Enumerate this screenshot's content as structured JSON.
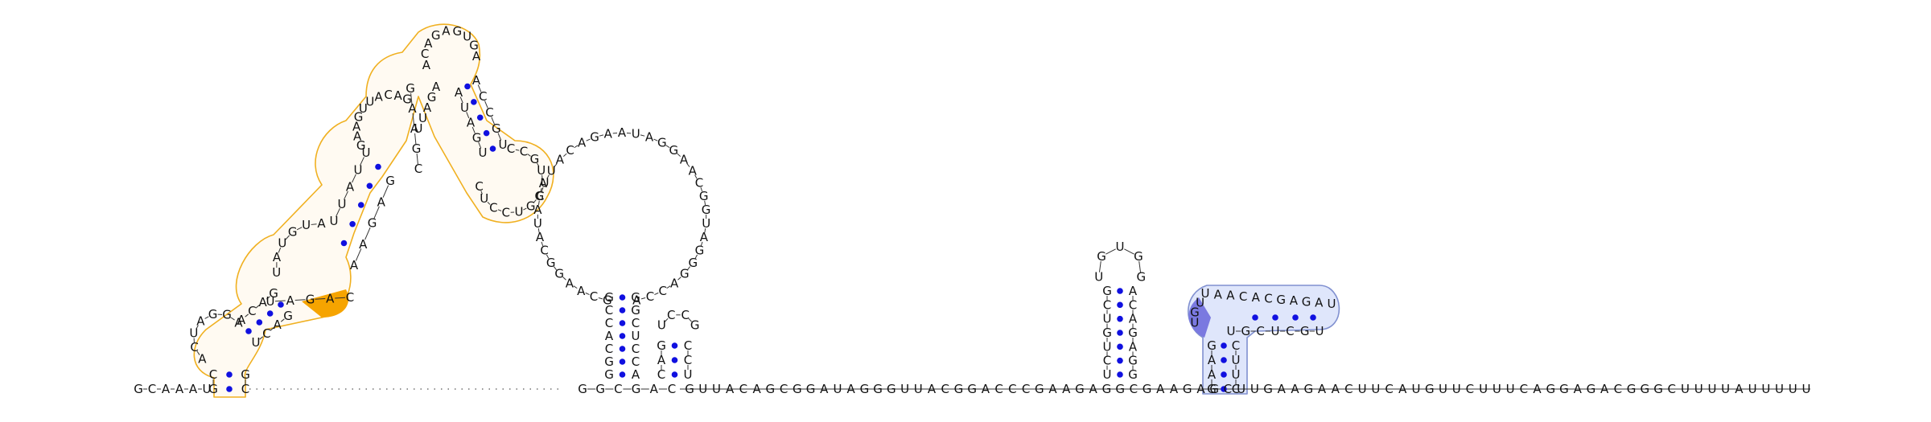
{
  "colors": {
    "nucleotide_text": "#111111",
    "base_pair_dot": "#1010e0",
    "module_orange_stroke": "#f0b020",
    "module_orange_fill": "#f6a400",
    "module_blue_stroke": "#8090d0",
    "module_blue_fill": "#dfe6fb",
    "module_blue_dark": "#7a79e0"
  },
  "sequence_3prime_tail": "G·C·A·A·A·U·G·C·C·G·G·C·G·A·C·G·U·U·A·C·A·G·C·G·G·A·U·A·G·G·G·U·U·A·C·G·G·A·C·C·C·G·A·A·G·A·G·G·C·G·A·A·G·A·G·C·U·U·G·A·A·G·A·A·C·U·U·C·A·U·G·U·U·C·U·U·U·C·A·G·G·A·G·A·C·G·G·G·C·U·U·U·U·A·U·U·U·U·U",
  "structure": {
    "baseline_5prime": [
      "G",
      "C",
      "A",
      "A",
      "A",
      "U"
    ],
    "baseline_mid": [
      "G",
      "G",
      "C",
      "G",
      "A",
      "C"
    ],
    "baseline_3prime": [
      "G",
      "U",
      "U",
      "A",
      "C",
      "A",
      "G",
      "C",
      "G",
      "G",
      "A",
      "U",
      "A",
      "G",
      "G",
      "G",
      "U",
      "U",
      "A",
      "C",
      "G",
      "G",
      "A",
      "C",
      "C",
      "C",
      "G",
      "A",
      "A",
      "G",
      "A",
      "G",
      "G",
      "C",
      "G",
      "A",
      "A",
      "G",
      "A",
      "G",
      "C",
      "U",
      "U",
      "G",
      "A",
      "A",
      "G",
      "A",
      "A",
      "C",
      "U",
      "U",
      "C",
      "A",
      "U",
      "G",
      "U",
      "U",
      "C",
      "U",
      "U",
      "U",
      "C",
      "A",
      "G",
      "G",
      "A",
      "G",
      "A",
      "C",
      "G",
      "G",
      "G",
      "C",
      "U",
      "U",
      "U",
      "U",
      "A",
      "U",
      "U",
      "U",
      "U",
      "U"
    ],
    "big_hairpin": {
      "stem_5prime": [
        "G",
        "C",
        "C",
        "A",
        "C",
        "G",
        "G"
      ],
      "stem_3prime": [
        "G",
        "G",
        "C",
        "U",
        "C",
        "C",
        "A"
      ],
      "loop": [
        "G",
        "C",
        "A",
        "A",
        "G",
        "G",
        "C",
        "A",
        "U",
        "A",
        "C",
        "U",
        "U",
        "A",
        "C",
        "A",
        "G",
        "A",
        "A",
        "U",
        "A",
        "G",
        "G",
        "A",
        "A",
        "C",
        "G",
        "G",
        "U",
        "A",
        "G",
        "G",
        "G",
        "A",
        "C",
        "C",
        "A"
      ],
      "small_stem_5prime": [
        "C",
        "A",
        "G"
      ],
      "small_stem_3prime": [
        "U",
        "C",
        "C"
      ],
      "small_loop": [
        "U",
        "C",
        "C",
        "G"
      ]
    },
    "hairpin_right": {
      "stem_5prime": [
        "U",
        "C",
        "U",
        "G",
        "U",
        "C",
        "G"
      ],
      "stem_3prime": [
        "G",
        "G",
        "A",
        "G",
        "A",
        "C",
        "A"
      ],
      "loop": [
        "U",
        "G",
        "U",
        "G",
        "G"
      ]
    },
    "blue_module": {
      "stem_5prime": [
        "G",
        "A",
        "A",
        "G"
      ],
      "stem_3prime": [
        "C",
        "U",
        "U",
        "C"
      ],
      "loop_top": [
        "U",
        "A",
        "A",
        "C",
        "A",
        "C",
        "G",
        "A",
        "G",
        "A",
        "U"
      ],
      "loop_bottom": [
        "U",
        "G",
        "C",
        "U",
        "C",
        "G",
        "U"
      ],
      "dark_nucleotides": [
        "U",
        "G",
        "U"
      ]
    },
    "orange_module": {
      "stem1_5prime": [
        "G",
        "C"
      ],
      "stem1_3prime": [
        "C",
        "G"
      ],
      "loop1": [
        "A",
        "C",
        "U",
        "A",
        "G",
        "G",
        "A"
      ],
      "stem2_5prime": [
        "A",
        "C",
        "A",
        "G"
      ],
      "stem2_3prime": [
        "U",
        "C",
        "A",
        "G"
      ],
      "loop2": [
        "U",
        "A",
        "U",
        "G",
        "U",
        "A"
      ],
      "highlight": [
        "U",
        "A",
        "G",
        "A",
        "C"
      ],
      "stem3_5prime": [
        "U",
        "U",
        "A",
        "U",
        "U"
      ],
      "stem3_3prime": [
        "A",
        "A",
        "G",
        "A",
        "G"
      ],
      "loop3": [
        "G",
        "A",
        "A",
        "G",
        "U",
        "U",
        "A",
        "C",
        "A",
        "G"
      ],
      "stem4_5prime": [
        "U",
        "U",
        "A",
        "G",
        "A"
      ],
      "stem4_3prime": [
        "C",
        "G",
        "A",
        "A",
        "G"
      ],
      "top_loop": [
        "A",
        "C",
        "A",
        "G",
        "A",
        "G",
        "U",
        "G",
        "A"
      ],
      "stem5_5prime": [
        "A",
        "U",
        "A",
        "G",
        "U"
      ],
      "stem5_3prime": [
        "A",
        "C",
        "C",
        "G",
        "U"
      ],
      "loop5": [
        "C",
        "C",
        "G",
        "U",
        "A",
        "G",
        "G",
        "U",
        "C",
        "C",
        "U",
        "C"
      ]
    }
  }
}
